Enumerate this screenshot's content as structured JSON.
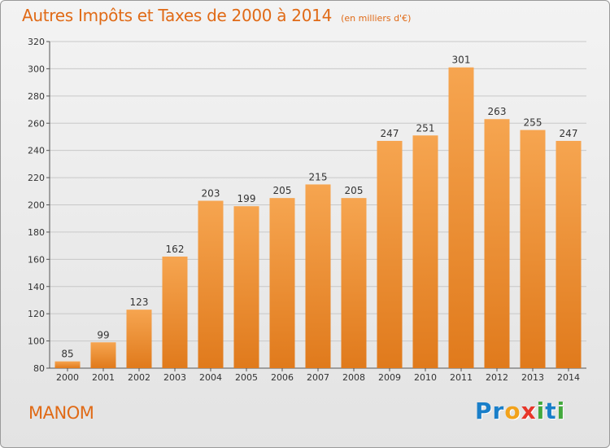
{
  "header": {
    "title": "Autres Impôts et Taxes de 2000 à 2014",
    "unit": "(en milliers d'€)"
  },
  "footer": {
    "commune": "MANOM",
    "brand": "Proxiti",
    "brand_letters": [
      {
        "char": "P",
        "color": "#1a7fc9"
      },
      {
        "char": "r",
        "color": "#1a7fc9"
      },
      {
        "char": "o",
        "color": "#f2a21b"
      },
      {
        "char": "x",
        "color": "#e7362a"
      },
      {
        "char": "i",
        "color": "#43a93d"
      },
      {
        "char": "t",
        "color": "#1a7fc9"
      },
      {
        "char": "i",
        "color": "#43a93d"
      }
    ]
  },
  "colors": {
    "accent": "#e06a16",
    "bar_top": "#f6a550",
    "bar_bottom": "#e07a1c",
    "grid": "#c8c8c8",
    "axis_text": "#333333"
  },
  "chart_data": {
    "type": "bar",
    "title": "Autres Impôts et Taxes de 2000 à 2014",
    "unit": "(en milliers d'€)",
    "categories": [
      "2000",
      "2001",
      "2002",
      "2003",
      "2004",
      "2005",
      "2006",
      "2007",
      "2008",
      "2009",
      "2010",
      "2011",
      "2012",
      "2013",
      "2014"
    ],
    "values": [
      85,
      99,
      123,
      162,
      203,
      199,
      205,
      215,
      205,
      247,
      251,
      301,
      263,
      255,
      247
    ],
    "ylim": [
      80,
      320
    ],
    "yticks": [
      80,
      100,
      120,
      140,
      160,
      180,
      200,
      220,
      240,
      260,
      280,
      300,
      320
    ],
    "grid": true,
    "data_labels": true
  }
}
